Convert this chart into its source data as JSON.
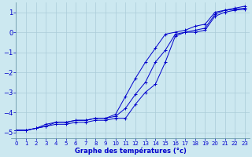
{
  "xlabel": "Graphe des températures (°c)",
  "background_color": "#cce8f0",
  "grid_color": "#aaccd8",
  "line_color": "#0000cc",
  "xlim": [
    -0.5,
    23.5
  ],
  "ylim": [
    -5.3,
    1.5
  ],
  "yticks": [
    -5,
    -4,
    -3,
    -2,
    -1,
    0,
    1
  ],
  "xticks": [
    0,
    1,
    2,
    3,
    4,
    5,
    6,
    7,
    8,
    9,
    10,
    11,
    12,
    13,
    14,
    15,
    16,
    17,
    18,
    19,
    20,
    21,
    22,
    23
  ],
  "hours": [
    0,
    1,
    2,
    3,
    4,
    5,
    6,
    7,
    8,
    9,
    10,
    11,
    12,
    13,
    14,
    15,
    16,
    17,
    18,
    19,
    20,
    21,
    22,
    23
  ],
  "curve_top": [
    -4.9,
    -4.9,
    -4.8,
    -4.6,
    -4.5,
    -4.5,
    -4.4,
    -4.4,
    -4.3,
    -4.3,
    -4.1,
    -3.2,
    -2.3,
    -1.5,
    -0.8,
    -0.1,
    0.0,
    0.1,
    0.3,
    0.4,
    1.0,
    1.1,
    1.2,
    1.3
  ],
  "curve_mid": [
    -4.9,
    -4.9,
    -4.8,
    -4.7,
    -4.5,
    -4.5,
    -4.4,
    -4.4,
    -4.3,
    -4.3,
    -4.2,
    -3.8,
    -3.1,
    -2.5,
    -1.5,
    -0.9,
    -0.1,
    0.0,
    0.1,
    0.2,
    0.9,
    1.1,
    1.15,
    1.2
  ],
  "curve_bot": [
    -4.9,
    -4.9,
    -4.8,
    -4.7,
    -4.6,
    -4.6,
    -4.5,
    -4.5,
    -4.4,
    -4.4,
    -4.3,
    -4.3,
    -3.6,
    -3.0,
    -2.6,
    -1.5,
    -0.2,
    0.0,
    0.0,
    0.1,
    0.8,
    1.0,
    1.1,
    1.15
  ]
}
